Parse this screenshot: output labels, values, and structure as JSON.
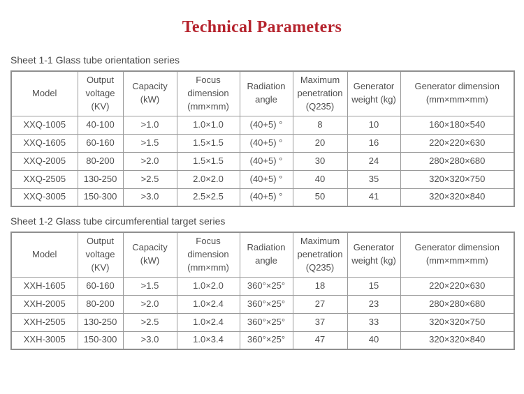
{
  "page": {
    "title": "Technical Parameters"
  },
  "colors": {
    "title_accent": "#b5232d",
    "table_border": "#9a9a9a",
    "body_text": "#4f4f4f"
  },
  "table1": {
    "caption": "Sheet 1-1 Glass tube orientation series",
    "headers": [
      "Model",
      "Output voltage (KV)",
      "Capacity (kW)",
      "Focus dimension (mm×mm)",
      "Radiation angle",
      "Maximum penetration (Q235)",
      "Generator weight (kg)",
      "Generator dimension (mm×mm×mm)"
    ],
    "rows": [
      [
        "XXQ-1005",
        "40-100",
        ">1.0",
        "1.0×1.0",
        "(40+5) °",
        "8",
        "10",
        "160×180×540"
      ],
      [
        "XXQ-1605",
        "60-160",
        ">1.5",
        "1.5×1.5",
        "(40+5) °",
        "20",
        "16",
        "220×220×630"
      ],
      [
        "XXQ-2005",
        "80-200",
        ">2.0",
        "1.5×1.5",
        "(40+5) °",
        "30",
        "24",
        "280×280×680"
      ],
      [
        "XXQ-2505",
        "130-250",
        ">2.5",
        "2.0×2.0",
        "(40+5) °",
        "40",
        "35",
        "320×320×750"
      ],
      [
        "XXQ-3005",
        "150-300",
        ">3.0",
        "2.5×2.5",
        "(40+5) °",
        "50",
        "41",
        "320×320×840"
      ]
    ]
  },
  "table2": {
    "caption": "Sheet 1-2 Glass tube circumferential target series",
    "headers": [
      "Model",
      "Output voltage (KV)",
      "Capacity (kW)",
      "Focus dimension (mm×mm)",
      "Radiation angle",
      "Maximum penetration (Q235)",
      "Generator weight (kg)",
      "Generator dimension (mm×mm×mm)"
    ],
    "rows": [
      [
        "XXH-1605",
        "60-160",
        ">1.5",
        "1.0×2.0",
        "360°×25°",
        "18",
        "15",
        "220×220×630"
      ],
      [
        "XXH-2005",
        "80-200",
        ">2.0",
        "1.0×2.4",
        "360°×25°",
        "27",
        "23",
        "280×280×680"
      ],
      [
        "XXH-2505",
        "130-250",
        ">2.5",
        "1.0×2.4",
        "360°×25°",
        "37",
        "33",
        "320×320×750"
      ],
      [
        "XXH-3005",
        "150-300",
        ">3.0",
        "1.0×3.4",
        "360°×25°",
        "47",
        "40",
        "320×320×840"
      ]
    ]
  }
}
